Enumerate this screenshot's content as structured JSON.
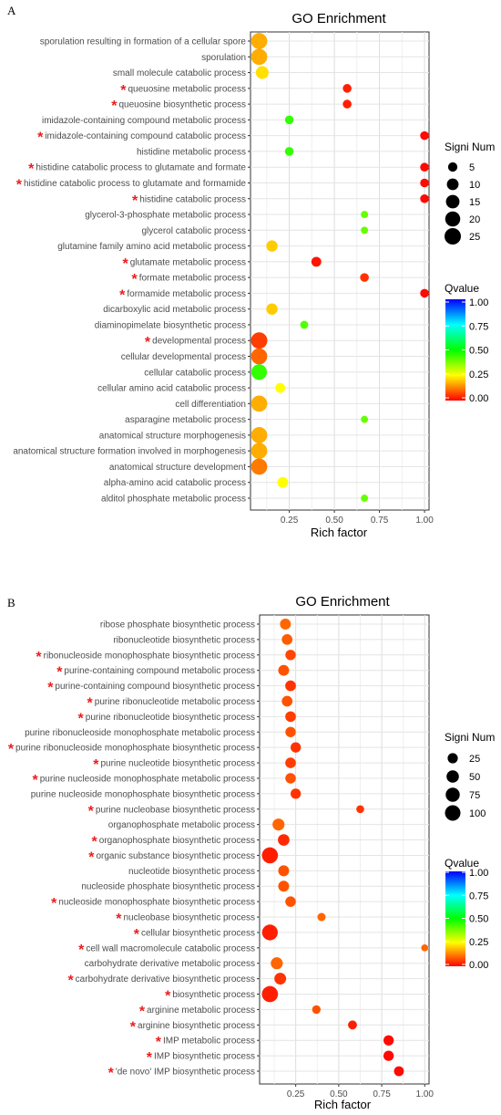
{
  "chart_data": [
    {
      "type": "scatter",
      "panel_label": "A",
      "title": "GO Enrichment",
      "xlabel": "Rich factor",
      "ylabel": "",
      "xlim": [
        0.035,
        1.025
      ],
      "xticks": [
        0.25,
        0.5,
        0.75,
        1.0
      ],
      "xtick_labels": [
        "0.25",
        "0.50",
        "0.75",
        "1.00"
      ],
      "grid": true,
      "size_legend": {
        "title": "Signi Num",
        "values": [
          5,
          10,
          15,
          20,
          25
        ],
        "labels": [
          "5",
          "10",
          "15",
          "20",
          "25"
        ]
      },
      "color_legend": {
        "title": "Qvalue",
        "ticks": [
          1.0,
          0.75,
          0.5,
          0.25,
          0.0
        ],
        "labels": [
          "1.00",
          "0.75",
          "0.50",
          "0.25",
          "0.00"
        ]
      },
      "points": [
        {
          "term": "sporulation resulting in formation of a cellular spore",
          "rich_factor": 0.083,
          "count": 24,
          "qvalue": 0.17,
          "marked": false
        },
        {
          "term": "sporulation",
          "rich_factor": 0.083,
          "count": 24,
          "qvalue": 0.17,
          "marked": false
        },
        {
          "term": "small molecule catabolic process",
          "rich_factor": 0.1,
          "count": 13,
          "qvalue": 0.22,
          "marked": false
        },
        {
          "term": "queuosine metabolic process",
          "rich_factor": 0.571,
          "count": 4,
          "qvalue": 0.03,
          "marked": true
        },
        {
          "term": "queuosine biosynthetic process",
          "rich_factor": 0.571,
          "count": 4,
          "qvalue": 0.03,
          "marked": true
        },
        {
          "term": "imidazole-containing compound metabolic process",
          "rich_factor": 0.25,
          "count": 4,
          "qvalue": 0.45,
          "marked": false
        },
        {
          "term": "imidazole-containing compound catabolic process",
          "rich_factor": 1.0,
          "count": 4,
          "qvalue": 0.01,
          "marked": true
        },
        {
          "term": "histidine metabolic process",
          "rich_factor": 0.25,
          "count": 4,
          "qvalue": 0.45,
          "marked": false
        },
        {
          "term": "histidine catabolic process to glutamate and formate",
          "rich_factor": 1.0,
          "count": 4,
          "qvalue": 0.01,
          "marked": true
        },
        {
          "term": "histidine catabolic process to glutamate and formamide",
          "rich_factor": 1.0,
          "count": 4,
          "qvalue": 0.01,
          "marked": true
        },
        {
          "term": "histidine catabolic process",
          "rich_factor": 1.0,
          "count": 4,
          "qvalue": 0.01,
          "marked": true
        },
        {
          "term": "glycerol-3-phosphate metabolic process",
          "rich_factor": 0.667,
          "count": 2,
          "qvalue": 0.4,
          "marked": false
        },
        {
          "term": "glycerol catabolic process",
          "rich_factor": 0.667,
          "count": 2,
          "qvalue": 0.4,
          "marked": false
        },
        {
          "term": "glutamine family amino acid metabolic process",
          "rich_factor": 0.154,
          "count": 9,
          "qvalue": 0.2,
          "marked": false
        },
        {
          "term": "glutamate metabolic process",
          "rich_factor": 0.4,
          "count": 6,
          "qvalue": 0.02,
          "marked": true
        },
        {
          "term": "formate metabolic process",
          "rich_factor": 0.667,
          "count": 4,
          "qvalue": 0.05,
          "marked": true
        },
        {
          "term": "formamide metabolic process",
          "rich_factor": 1.0,
          "count": 4,
          "qvalue": 0.01,
          "marked": true
        },
        {
          "term": "dicarboxylic acid metabolic process",
          "rich_factor": 0.154,
          "count": 9,
          "qvalue": 0.2,
          "marked": false
        },
        {
          "term": "diaminopimelate biosynthetic process",
          "rich_factor": 0.333,
          "count": 3,
          "qvalue": 0.42,
          "marked": false
        },
        {
          "term": "developmental process",
          "rich_factor": 0.083,
          "count": 25,
          "qvalue": 0.06,
          "marked": true
        },
        {
          "term": "cellular developmental process",
          "rich_factor": 0.083,
          "count": 24,
          "qvalue": 0.1,
          "marked": false
        },
        {
          "term": "cellular catabolic process",
          "rich_factor": 0.083,
          "count": 22,
          "qvalue": 0.45,
          "marked": false
        },
        {
          "term": "cellular amino acid catabolic process",
          "rich_factor": 0.2,
          "count": 6,
          "qvalue": 0.25,
          "marked": false
        },
        {
          "term": "cell differentiation",
          "rich_factor": 0.083,
          "count": 24,
          "qvalue": 0.17,
          "marked": false
        },
        {
          "term": "asparagine metabolic process",
          "rich_factor": 0.667,
          "count": 2,
          "qvalue": 0.4,
          "marked": false
        },
        {
          "term": "anatomical structure morphogenesis",
          "rich_factor": 0.083,
          "count": 24,
          "qvalue": 0.17,
          "marked": false
        },
        {
          "term": "anatomical structure formation involved in morphogenesis",
          "rich_factor": 0.083,
          "count": 24,
          "qvalue": 0.17,
          "marked": false
        },
        {
          "term": "anatomical structure development",
          "rich_factor": 0.083,
          "count": 24,
          "qvalue": 0.12,
          "marked": false
        },
        {
          "term": "alpha-amino acid catabolic process",
          "rich_factor": 0.214,
          "count": 8,
          "qvalue": 0.25,
          "marked": false
        },
        {
          "term": "alditol phosphate metabolic process",
          "rich_factor": 0.667,
          "count": 2,
          "qvalue": 0.4,
          "marked": false
        }
      ]
    },
    {
      "type": "scatter",
      "panel_label": "B",
      "title": "GO Enrichment",
      "xlabel": "Rich factor",
      "ylabel": "",
      "xlim": [
        0.04,
        1.025
      ],
      "xticks": [
        0.25,
        0.5,
        0.75,
        1.0
      ],
      "xtick_labels": [
        "0.25",
        "0.50",
        "0.75",
        "1.00"
      ],
      "grid": true,
      "size_legend": {
        "title": "Signi Num",
        "values": [
          25,
          50,
          75,
          100
        ],
        "labels": [
          "25",
          "50",
          "75",
          "100"
        ]
      },
      "color_legend": {
        "title": "Qvalue",
        "ticks": [
          1.0,
          0.75,
          0.5,
          0.25,
          0.0
        ],
        "labels": [
          "1.00",
          "0.75",
          "0.50",
          "0.25",
          "0.00"
        ]
      },
      "points": [
        {
          "term": "ribose phosphate biosynthetic process",
          "rich_factor": 0.19,
          "count": 32,
          "qvalue": 0.1,
          "marked": false
        },
        {
          "term": "ribonucleotide biosynthetic process",
          "rich_factor": 0.2,
          "count": 30,
          "qvalue": 0.09,
          "marked": false
        },
        {
          "term": "ribonucleoside monophosphate biosynthetic process",
          "rich_factor": 0.22,
          "count": 27,
          "qvalue": 0.07,
          "marked": true
        },
        {
          "term": "purine-containing compound metabolic process",
          "rich_factor": 0.18,
          "count": 32,
          "qvalue": 0.08,
          "marked": true
        },
        {
          "term": "purine-containing compound biosynthetic process",
          "rich_factor": 0.22,
          "count": 30,
          "qvalue": 0.05,
          "marked": true
        },
        {
          "term": "purine ribonucleotide metabolic process",
          "rich_factor": 0.2,
          "count": 30,
          "qvalue": 0.08,
          "marked": true
        },
        {
          "term": "purine ribonucleotide biosynthetic process",
          "rich_factor": 0.22,
          "count": 29,
          "qvalue": 0.06,
          "marked": true
        },
        {
          "term": "purine ribonucleoside monophosphate metabolic process",
          "rich_factor": 0.22,
          "count": 27,
          "qvalue": 0.08,
          "marked": false
        },
        {
          "term": "purine ribonucleoside monophosphate biosynthetic process",
          "rich_factor": 0.25,
          "count": 26,
          "qvalue": 0.05,
          "marked": true
        },
        {
          "term": "purine nucleotide biosynthetic process",
          "rich_factor": 0.22,
          "count": 29,
          "qvalue": 0.06,
          "marked": true
        },
        {
          "term": "purine nucleoside monophosphate metabolic process",
          "rich_factor": 0.22,
          "count": 28,
          "qvalue": 0.08,
          "marked": true
        },
        {
          "term": "purine nucleoside monophosphate biosynthetic process",
          "rich_factor": 0.25,
          "count": 26,
          "qvalue": 0.05,
          "marked": false
        },
        {
          "term": "purine nucleobase biosynthetic process",
          "rich_factor": 0.625,
          "count": 8,
          "qvalue": 0.05,
          "marked": true
        },
        {
          "term": "organophosphate metabolic process",
          "rich_factor": 0.15,
          "count": 45,
          "qvalue": 0.1,
          "marked": false
        },
        {
          "term": "organophosphate biosynthetic process",
          "rich_factor": 0.18,
          "count": 40,
          "qvalue": 0.04,
          "marked": true
        },
        {
          "term": "organic substance biosynthetic process",
          "rich_factor": 0.1,
          "count": 110,
          "qvalue": 0.03,
          "marked": true
        },
        {
          "term": "nucleotide biosynthetic process",
          "rich_factor": 0.18,
          "count": 32,
          "qvalue": 0.08,
          "marked": false
        },
        {
          "term": "nucleoside phosphate biosynthetic process",
          "rich_factor": 0.18,
          "count": 32,
          "qvalue": 0.08,
          "marked": false
        },
        {
          "term": "nucleoside monophosphate biosynthetic process",
          "rich_factor": 0.22,
          "count": 28,
          "qvalue": 0.08,
          "marked": true
        },
        {
          "term": "nucleobase biosynthetic process",
          "rich_factor": 0.4,
          "count": 10,
          "qvalue": 0.1,
          "marked": true
        },
        {
          "term": "cellular biosynthetic process",
          "rich_factor": 0.1,
          "count": 105,
          "qvalue": 0.03,
          "marked": true
        },
        {
          "term": "cell wall macromolecule catabolic process",
          "rich_factor": 1.0,
          "count": 4,
          "qvalue": 0.1,
          "marked": true
        },
        {
          "term": "carbohydrate derivative metabolic process",
          "rich_factor": 0.14,
          "count": 45,
          "qvalue": 0.1,
          "marked": false
        },
        {
          "term": "carbohydrate derivative biosynthetic process",
          "rich_factor": 0.16,
          "count": 42,
          "qvalue": 0.05,
          "marked": true
        },
        {
          "term": "biosynthetic process",
          "rich_factor": 0.1,
          "count": 112,
          "qvalue": 0.03,
          "marked": true
        },
        {
          "term": "arginine metabolic process",
          "rich_factor": 0.37,
          "count": 12,
          "qvalue": 0.08,
          "marked": true
        },
        {
          "term": "arginine biosynthetic process",
          "rich_factor": 0.58,
          "count": 15,
          "qvalue": 0.03,
          "marked": true
        },
        {
          "term": "IMP metabolic process",
          "rich_factor": 0.79,
          "count": 26,
          "qvalue": 0.01,
          "marked": true
        },
        {
          "term": "IMP biosynthetic process",
          "rich_factor": 0.79,
          "count": 26,
          "qvalue": 0.01,
          "marked": true
        },
        {
          "term": "'de novo' IMP biosynthetic process",
          "rich_factor": 0.85,
          "count": 22,
          "qvalue": 0.01,
          "marked": true
        }
      ]
    }
  ]
}
